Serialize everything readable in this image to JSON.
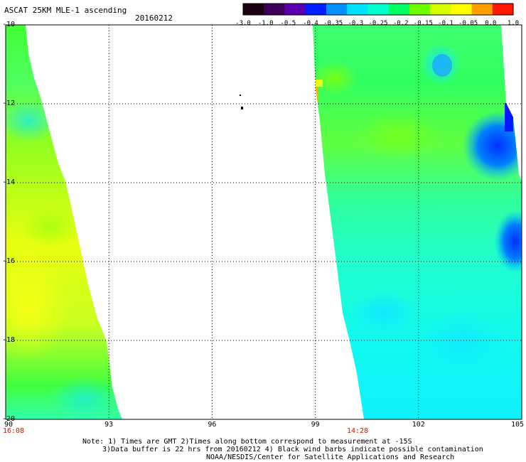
{
  "header": {
    "title": "ASCAT 25KM MLE-1 ascending",
    "date": "20160212"
  },
  "colorbar": {
    "labels": [
      "-3.0",
      "-1.0",
      "-0.5",
      "-0.4",
      "-0.35",
      "-0.3",
      "-0.25",
      "-0.2",
      "-0.15",
      "-0.1",
      "-0.05",
      "0.0",
      "1.0"
    ],
    "colors": [
      "#1a0010",
      "#3d0058",
      "#5a00b0",
      "#0020ff",
      "#0090ff",
      "#00e0ff",
      "#00ffd0",
      "#00ff60",
      "#70ff00",
      "#d8ff00",
      "#ffff00",
      "#ffa000",
      "#ff1800"
    ]
  },
  "axes": {
    "lat_labels": [
      "-10",
      "-12",
      "-14",
      "-16",
      "-18",
      "-20"
    ],
    "lon_labels": [
      "90",
      "93",
      "96",
      "99",
      "102",
      "105"
    ]
  },
  "pass_times": {
    "left": "16:08",
    "right": "14:28"
  },
  "note": {
    "line1": "Note: 1) Times are GMT 2)Times along bottom correspond to measurement at -15S",
    "line2": "3)Data buffer is 22 hrs from 20160212 4) Black wind barbs indicate possible contamination",
    "line3": "NOAA/NESDIS/Center for Satellite Applications and Research"
  }
}
